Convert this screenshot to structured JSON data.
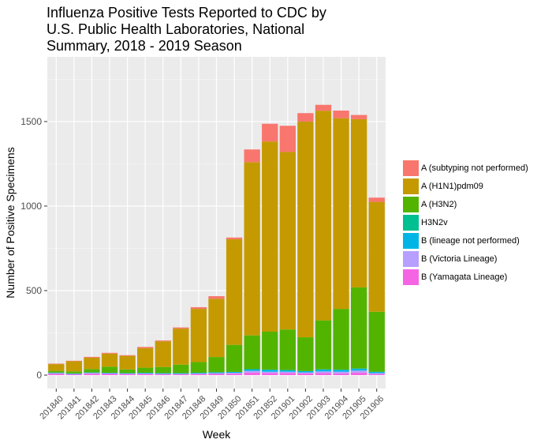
{
  "chart_data": {
    "type": "bar",
    "stacked": true,
    "title": "Influenza Positive Tests Reported to CDC by\n U.S. Public Health Laboratories, National\n Summary, 2018 - 2019 Season",
    "xlabel": "Week",
    "ylabel": "Number of Positive Specimens",
    "ylim": [
      0,
      1870
    ],
    "yticks": [
      0,
      500,
      1000,
      1500
    ],
    "grid": true,
    "legend_position": "right",
    "categories": [
      "201840",
      "201841",
      "201842",
      "201843",
      "201844",
      "201845",
      "201846",
      "201847",
      "201848",
      "201849",
      "201850",
      "201851",
      "201852",
      "201901",
      "201902",
      "201903",
      "201904",
      "201905",
      "201906"
    ],
    "series": [
      {
        "name": "B (Yamagata Lineage)",
        "color": "#F564E3",
        "values": [
          8,
          5,
          8,
          7,
          6,
          6,
          5,
          5,
          6,
          7,
          8,
          15,
          12,
          12,
          10,
          12,
          10,
          15,
          6
        ]
      },
      {
        "name": "B (Victoria Lineage)",
        "color": "#B79FFF",
        "values": [
          4,
          2,
          5,
          4,
          3,
          4,
          3,
          3,
          4,
          5,
          6,
          10,
          8,
          8,
          6,
          10,
          10,
          12,
          6
        ]
      },
      {
        "name": "B (lineage not performed)",
        "color": "#00B5E6",
        "values": [
          3,
          3,
          3,
          3,
          3,
          4,
          4,
          4,
          4,
          5,
          5,
          10,
          12,
          10,
          8,
          12,
          12,
          12,
          8
        ]
      },
      {
        "name": "H3N2v",
        "color": "#00BF91",
        "values": [
          0,
          0,
          0,
          0,
          0,
          0,
          0,
          0,
          0,
          0,
          0,
          0,
          0,
          0,
          0,
          0,
          0,
          0,
          0
        ]
      },
      {
        "name": "A (H3N2)",
        "color": "#53B400",
        "values": [
          10,
          12,
          20,
          36,
          22,
          30,
          36,
          50,
          63,
          90,
          160,
          200,
          225,
          240,
          200,
          290,
          360,
          480,
          355
        ]
      },
      {
        "name": "A (H1N1)pdm09",
        "color": "#C49A00",
        "values": [
          40,
          60,
          67,
          77,
          80,
          116,
          152,
          213,
          315,
          345,
          625,
          1025,
          1125,
          1050,
          1276,
          1240,
          1128,
          995,
          650
        ]
      },
      {
        "name": "A (subtyping not performed)",
        "color": "#F8766D",
        "values": [
          3,
          3,
          5,
          5,
          4,
          7,
          5,
          7,
          10,
          15,
          10,
          75,
          105,
          155,
          50,
          35,
          45,
          25,
          25
        ]
      }
    ]
  }
}
